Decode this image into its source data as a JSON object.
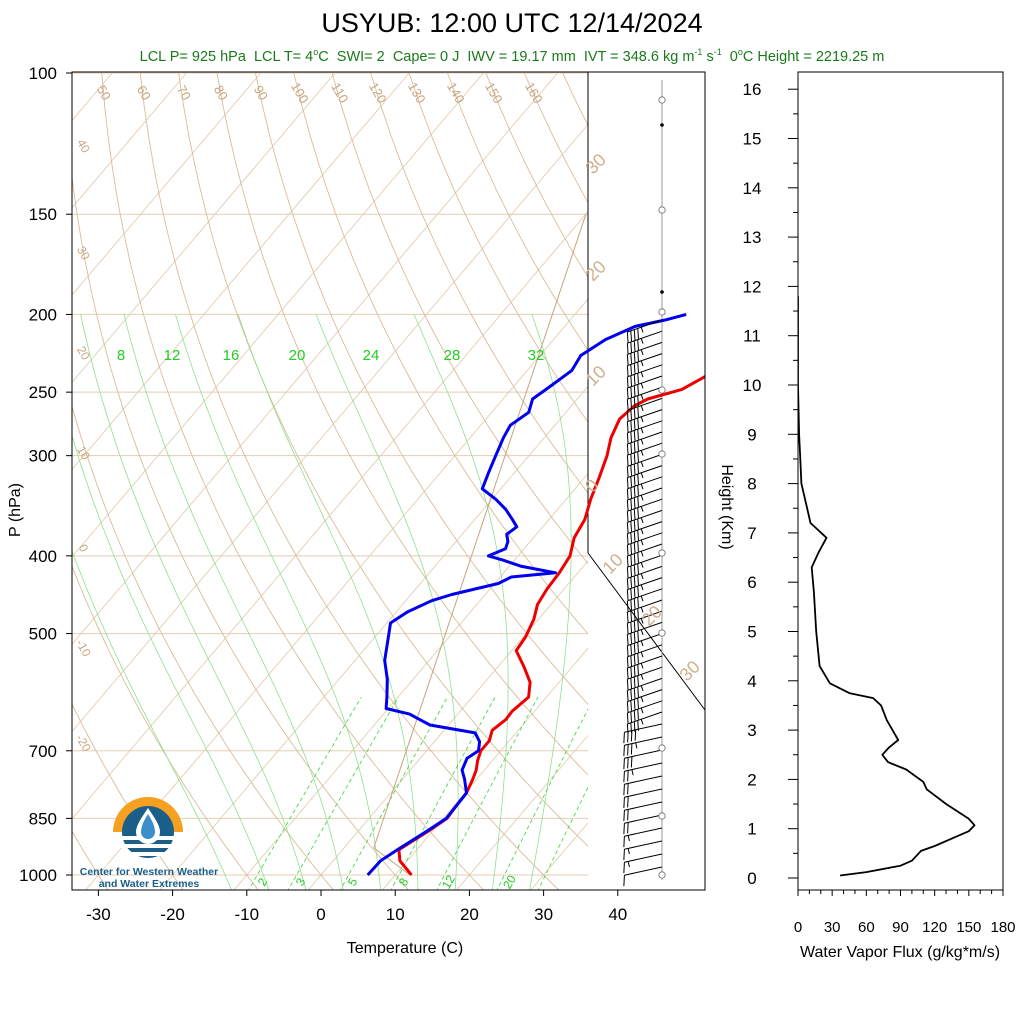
{
  "title": "USYUB: 12:00 UTC 12/14/2024",
  "subtitle": {
    "lcl_p": "LCL P= 925 hPa",
    "lcl_t_pre": "LCL T= 4",
    "lcl_t_unit": "C",
    "deg": "o",
    "swi": "SWI= 2",
    "cape": "Cape= 0 J",
    "iwv": "IWV = 19.17 mm",
    "ivt_pre": "IVT = 348.6 kg m",
    "ivt_exp1": "-1",
    "ivt_mid": " s",
    "ivt_exp2": "-1",
    "zero_pre": "0",
    "zero_post": "C Height = 2219.25 m"
  },
  "logo": {
    "line1": "Center for Western Weather",
    "line2": "and Water Extremes"
  },
  "colors": {
    "temperature": "#ee0000",
    "dewpoint": "#0000ee",
    "isobar_isotherm": "#e3cdb3",
    "dry_adiabat": "#d9bc9a",
    "moist_adiabat": "#8fe08f",
    "mixing_ratio": "#4cd94c",
    "subtitle": "#1a7a1a"
  },
  "chart_data": [
    {
      "type": "line",
      "name": "skew-t",
      "xlabel": "Temperature (C)",
      "ylabel": "P (hPa)",
      "x_ticks": [
        "-30",
        "-20",
        "-10",
        "0",
        "10",
        "20",
        "30",
        "40"
      ],
      "y_ticks": [
        "100",
        "150",
        "200",
        "250",
        "300",
        "400",
        "500",
        "700",
        "850",
        "1000"
      ],
      "xlim": [
        -33,
        52
      ],
      "ylim": [
        1050,
        100
      ],
      "y_scale": "log",
      "dry_adiabat_labels": [
        "50",
        "60",
        "70",
        "80",
        "90",
        "100",
        "110",
        "120",
        "130",
        "140",
        "150",
        "160",
        "40",
        "30",
        "20",
        "10",
        "0",
        "-10",
        "-20"
      ],
      "moist_adiabat_labels": [
        "30",
        "20",
        "10",
        "0",
        "10",
        "20",
        "30"
      ],
      "mixing_ratio_labels": [
        "2",
        "3",
        "5",
        "8",
        "12",
        "20"
      ],
      "mixing_ratio_top_labels": [
        "8",
        "12",
        "16",
        "20",
        "24",
        "28",
        "32"
      ],
      "series": [
        {
          "name": "Temperature",
          "points": [
            [
              12.2,
              1000
            ],
            [
              9,
              960
            ],
            [
              7.6,
              930
            ],
            [
              9.5,
              880
            ],
            [
              10.5,
              850
            ],
            [
              10.3,
              820
            ],
            [
              10.2,
              790
            ],
            [
              9.5,
              760
            ],
            [
              8.9,
              740
            ],
            [
              8,
              720
            ],
            [
              7.3,
              700
            ],
            [
              7.3,
              680
            ],
            [
              6.5,
              660
            ],
            [
              7.1,
              640
            ],
            [
              7,
              625
            ],
            [
              7.6,
              600
            ],
            [
              6.1,
              575
            ],
            [
              3.5,
              550
            ],
            [
              0.6,
              525
            ],
            [
              0.3,
              505
            ],
            [
              -0.6,
              480
            ],
            [
              -1.8,
              460
            ],
            [
              -2.3,
              440
            ],
            [
              -2.5,
              420
            ],
            [
              -3,
              400
            ],
            [
              -4.5,
              380
            ],
            [
              -5.2,
              360
            ],
            [
              -6.7,
              340
            ],
            [
              -8,
              320
            ],
            [
              -9.5,
              300
            ],
            [
              -11,
              285
            ],
            [
              -12,
              270
            ],
            [
              -11.5,
              260
            ],
            [
              -10.5,
              255
            ],
            [
              -7,
              248
            ],
            [
              -5.5,
              240
            ],
            [
              -3,
              225
            ],
            [
              -3.5,
              215
            ],
            [
              -2,
              212
            ],
            [
              1.5,
              205
            ],
            [
              2.5,
              200
            ]
          ]
        },
        {
          "name": "Dewpoint",
          "points": [
            [
              6.3,
              1000
            ],
            [
              6.4,
              960
            ],
            [
              7.4,
              930
            ],
            [
              9.3,
              880
            ],
            [
              10.4,
              850
            ],
            [
              10.3,
              820
            ],
            [
              10.2,
              790
            ],
            [
              8.4,
              760
            ],
            [
              7,
              740
            ],
            [
              6.3,
              715
            ],
            [
              7,
              700
            ],
            [
              6.1,
              682
            ],
            [
              4.5,
              665
            ],
            [
              -2.5,
              650
            ],
            [
              -4.5,
              640
            ],
            [
              -6.5,
              630
            ],
            [
              -10.3,
              620
            ],
            [
              -11.5,
              600
            ],
            [
              -13.5,
              570
            ],
            [
              -16,
              540
            ],
            [
              -18.5,
              500
            ],
            [
              -19.5,
              485
            ],
            [
              -18.5,
              470
            ],
            [
              -16.5,
              455
            ],
            [
              -14.5,
              447
            ],
            [
              -12,
              440
            ],
            [
              -9.5,
              433
            ],
            [
              -8.5,
              425
            ],
            [
              -3,
              420
            ],
            [
              -8.5,
              412
            ],
            [
              -11.5,
              405
            ],
            [
              -14,
              400
            ],
            [
              -12.5,
              392
            ],
            [
              -13,
              384
            ],
            [
              -14,
              376
            ],
            [
              -13.5,
              368
            ],
            [
              -15,
              360
            ],
            [
              -17,
              350
            ],
            [
              -19.5,
              340
            ],
            [
              -22.5,
              330
            ],
            [
              -23.5,
              315
            ],
            [
              -24.5,
              300
            ],
            [
              -25.5,
              285
            ],
            [
              -26,
              275
            ],
            [
              -25,
              265
            ],
            [
              -26,
              255
            ],
            [
              -25,
              245
            ],
            [
              -24,
              235
            ],
            [
              -24.5,
              225
            ],
            [
              -23,
              215
            ],
            [
              -20.5,
              207
            ],
            [
              -17,
              203
            ],
            [
              -15,
              200
            ]
          ]
        }
      ]
    },
    {
      "type": "line",
      "name": "water-vapor-flux",
      "xlabel": "Water Vapor Flux (g/kg*m/s)",
      "ylabel": "Height (Km)",
      "x_ticks": [
        "0",
        "30",
        "60",
        "90",
        "120",
        "150",
        "180"
      ],
      "y_ticks": [
        "0",
        "1",
        "2",
        "3",
        "4",
        "5",
        "6",
        "7",
        "8",
        "9",
        "10",
        "11",
        "12",
        "13",
        "14",
        "15",
        "16"
      ],
      "xlim": [
        0,
        180
      ],
      "ylim": [
        -0.3,
        16.3
      ],
      "points": [
        [
          37,
          0.05
        ],
        [
          60,
          0.12
        ],
        [
          90,
          0.25
        ],
        [
          100,
          0.35
        ],
        [
          108,
          0.55
        ],
        [
          120,
          0.65
        ],
        [
          135,
          0.8
        ],
        [
          150,
          0.95
        ],
        [
          155,
          1.07
        ],
        [
          150,
          1.2
        ],
        [
          130,
          1.5
        ],
        [
          113,
          1.8
        ],
        [
          110,
          1.95
        ],
        [
          95,
          2.2
        ],
        [
          79,
          2.35
        ],
        [
          74,
          2.5
        ],
        [
          80,
          2.65
        ],
        [
          88,
          2.8
        ],
        [
          83,
          3.0
        ],
        [
          78,
          3.2
        ],
        [
          73,
          3.5
        ],
        [
          66,
          3.65
        ],
        [
          45,
          3.75
        ],
        [
          28,
          3.95
        ],
        [
          19,
          4.3
        ],
        [
          16,
          5
        ],
        [
          14,
          5.8
        ],
        [
          12,
          6.3
        ],
        [
          18,
          6.6
        ],
        [
          25,
          6.9
        ],
        [
          18,
          7.05
        ],
        [
          11,
          7.2
        ],
        [
          7,
          7.6
        ],
        [
          3,
          8
        ],
        [
          2,
          8.5
        ],
        [
          1,
          9
        ],
        [
          0,
          10
        ],
        [
          0,
          11
        ],
        [
          0,
          11.8
        ]
      ]
    },
    {
      "type": "scatter",
      "name": "wind-barbs",
      "speed_kt": [
        45,
        45,
        45,
        45,
        45,
        45,
        45,
        45,
        45,
        45,
        45,
        45,
        45,
        45,
        45,
        45,
        45,
        45,
        45,
        45,
        45,
        45,
        45,
        45,
        45,
        45,
        45,
        45,
        45,
        45,
        45,
        45,
        45,
        45,
        45,
        45,
        40,
        35,
        30,
        25,
        20,
        20,
        20,
        20,
        15,
        15,
        15,
        10
      ]
    }
  ]
}
